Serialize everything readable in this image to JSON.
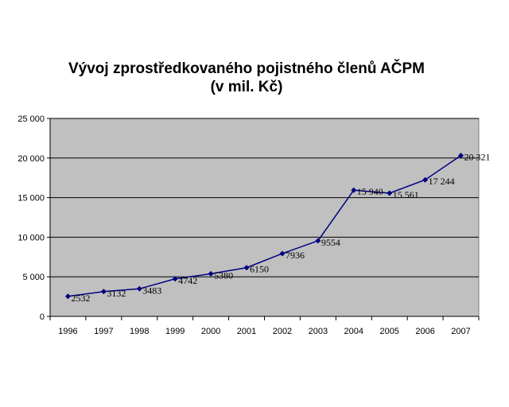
{
  "chart_data": {
    "type": "line",
    "title": "Vývoj zprostředkovaného pojistného členů AČPM",
    "subtitle": "(v mil. Kč)",
    "xlabel": "",
    "ylabel": "",
    "categories": [
      "1996",
      "1997",
      "1998",
      "1999",
      "2000",
      "2001",
      "2002",
      "2003",
      "2004",
      "2005",
      "2006",
      "2007"
    ],
    "series": [
      {
        "values": [
          2532,
          3132,
          3483,
          4742,
          5380,
          6150,
          7936,
          9554,
          15940,
          15561,
          17244,
          20321
        ],
        "labels": [
          "2532",
          "3132",
          "3483",
          "4742",
          "5380",
          "6150",
          "7936",
          "9554",
          "15 940",
          "15 561",
          "17 244",
          "20 321"
        ],
        "color": "#000080"
      }
    ],
    "ylim": [
      0,
      25000
    ],
    "yticks": [
      0,
      5000,
      10000,
      15000,
      20000,
      25000
    ],
    "ytick_labels": [
      "0",
      "5 000",
      "10 000",
      "15 000",
      "20 000",
      "25 000"
    ],
    "grid": true,
    "plot_background": "#c0c0c0",
    "gridline_color": "#000000",
    "legend": "none"
  }
}
